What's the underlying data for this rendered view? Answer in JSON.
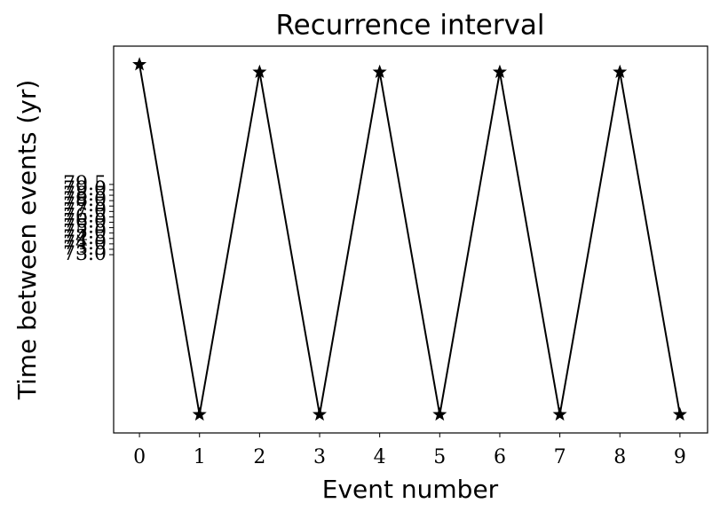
{
  "chart_data": {
    "type": "line",
    "title": "Recurrence interval",
    "xlabel": "Event number",
    "ylabel": "Time between events (yr)",
    "x": [
      0,
      1,
      2,
      3,
      4,
      5,
      6,
      7,
      8,
      9
    ],
    "series": [
      {
        "color": "#000000",
        "marker": "star",
        "values": [
          90.6,
          58.2,
          89.9,
          58.2,
          89.9,
          58.2,
          89.9,
          58.2,
          89.9,
          58.2
        ]
      }
    ],
    "xlim": [
      -0.43,
      9.46
    ],
    "xticks": [
      0,
      1,
      2,
      3,
      4,
      5,
      6,
      7,
      8,
      9
    ],
    "ylim": [
      56.5,
      92.3
    ],
    "yticks": [
      {
        "value": 73,
        "label": "73.0"
      },
      73.5,
      {
        "value": 74,
        "label": "74.0"
      },
      74.5,
      {
        "value": 75,
        "label": "75.0"
      },
      75.5,
      {
        "value": 76,
        "label": "76.0"
      },
      76.5,
      {
        "value": 77,
        "label": "77.0"
      },
      77.5,
      {
        "value": 78,
        "label": "78.0"
      },
      78.5,
      {
        "value": 79,
        "label": "79.0"
      },
      79.5
    ],
    "grid": false
  }
}
